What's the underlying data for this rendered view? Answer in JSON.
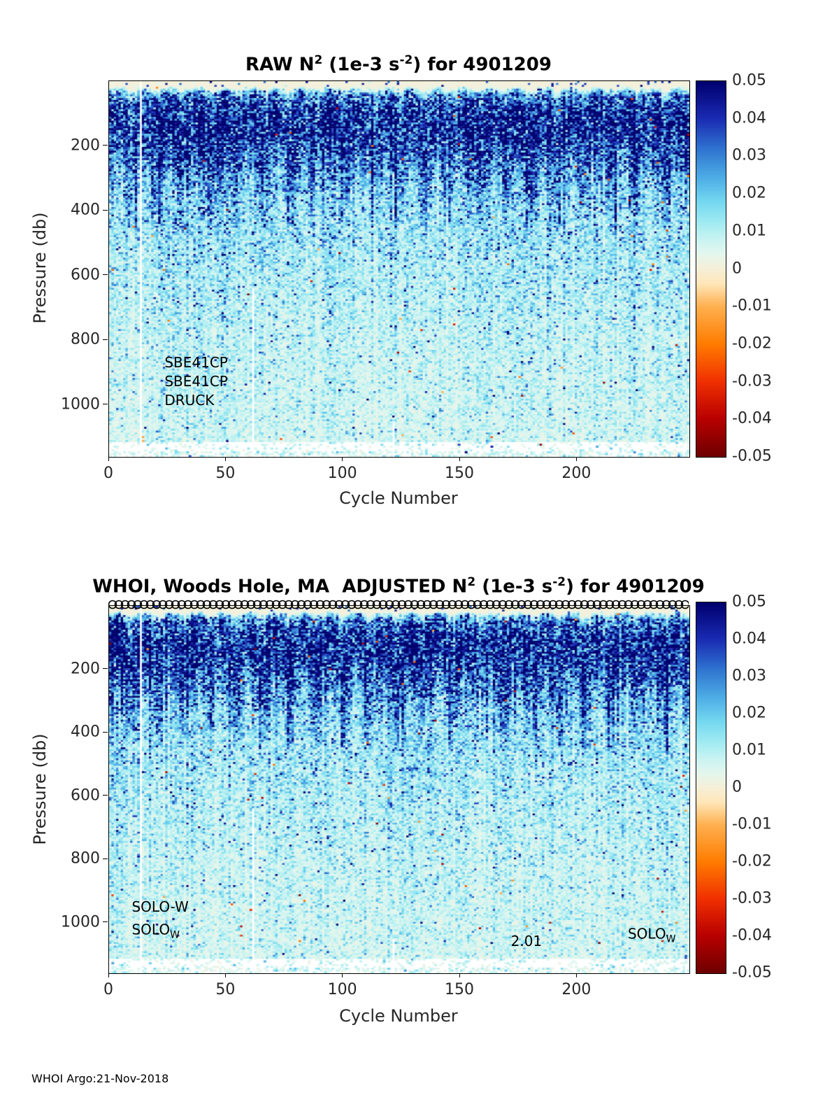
{
  "page": {
    "footer": "WHOI Argo:21-Nov-2018"
  },
  "chart_data": [
    {
      "type": "heatmap",
      "title_plain": "RAW N^2 (1e-3 s^-2) for 4901209",
      "title_parts": [
        {
          "t": "RAW N"
        },
        {
          "sup": "2"
        },
        {
          "t": " (1e-3 s"
        },
        {
          "sup": "-2"
        },
        {
          "t": ") for 4901209"
        }
      ],
      "xlabel": "Cycle Number",
      "ylabel": "Pressure (db)",
      "xlim": [
        0,
        248
      ],
      "ylim": [
        0,
        1160
      ],
      "y_axis_reversed": true,
      "x_ticks": [
        0,
        50,
        100,
        150,
        200
      ],
      "y_ticks": [
        200,
        400,
        600,
        800,
        1000
      ],
      "clim": [
        -0.05,
        0.05
      ],
      "colorbar_ticks": [
        0.05,
        0.04,
        0.03,
        0.02,
        0.01,
        0,
        -0.01,
        -0.02,
        -0.03,
        -0.04,
        -0.05
      ],
      "legend_position": "right-colorbar",
      "grid": false,
      "annotations": [
        {
          "text": "SBE41CP",
          "cycle": 24,
          "pressure": 873
        },
        {
          "text": "SBE41CP",
          "cycle": 24,
          "pressure": 932
        },
        {
          "text": "DRUCK",
          "cycle": 24,
          "pressure": 990
        }
      ],
      "profile": {
        "pressure": [
          0,
          20,
          45,
          120,
          230,
          350,
          550,
          800,
          1100,
          1160
        ],
        "n2_mean": [
          0.0006,
          0.0008,
          0.03,
          0.05,
          0.035,
          0.016,
          0.011,
          0.008,
          0.0065,
          0.006
        ]
      },
      "noise_sigma": 0.55,
      "missing_cycles": [
        {
          "cycle": 13,
          "from_pressure": 0
        },
        {
          "cycle": 61,
          "from_pressure": 640
        },
        {
          "cycle": 121,
          "from_pressure": 1050
        }
      ],
      "sparse_bottom_pressure": 1112,
      "top_markers": false,
      "seed": 20
    },
    {
      "type": "heatmap",
      "title_plain": "WHOI, Woods Hole, MA  ADJUSTED N^2 (1e-3 s^-2) for 4901209",
      "title_parts": [
        {
          "t": "WHOI, Woods Hole, MA  ADJUSTED N"
        },
        {
          "sup": "2"
        },
        {
          "t": " (1e-3 s"
        },
        {
          "sup": "-2"
        },
        {
          "t": ") for 4901209"
        }
      ],
      "xlabel": "Cycle Number",
      "ylabel": "Pressure (db)",
      "xlim": [
        0,
        248
      ],
      "ylim": [
        0,
        1160
      ],
      "y_axis_reversed": true,
      "x_ticks": [
        0,
        50,
        100,
        150,
        200
      ],
      "y_ticks": [
        200,
        400,
        600,
        800,
        1000
      ],
      "clim": [
        -0.05,
        0.05
      ],
      "colorbar_ticks": [
        0.05,
        0.04,
        0.03,
        0.02,
        0.01,
        0,
        -0.01,
        -0.02,
        -0.03,
        -0.04,
        -0.05
      ],
      "legend_position": "right-colorbar",
      "grid": false,
      "annotations": [
        {
          "text": "SOLO-W",
          "cycle": 10,
          "pressure": 955
        },
        {
          "text": "SOLO",
          "sub": "W",
          "cycle": 10,
          "pressure": 1032
        },
        {
          "text": "2.01",
          "cycle": 172,
          "pressure": 1062
        },
        {
          "text": "SOLO",
          "sub": "W",
          "cycle": 222,
          "pressure": 1045
        }
      ],
      "profile": {
        "pressure": [
          0,
          20,
          45,
          120,
          230,
          350,
          550,
          800,
          1100,
          1160
        ],
        "n2_mean": [
          0.0006,
          0.0008,
          0.03,
          0.05,
          0.035,
          0.016,
          0.011,
          0.008,
          0.0065,
          0.006
        ]
      },
      "noise_sigma": 0.55,
      "missing_cycles": [
        {
          "cycle": 13,
          "from_pressure": 0
        },
        {
          "cycle": 61,
          "from_pressure": 640
        },
        {
          "cycle": 121,
          "from_pressure": 1050
        }
      ],
      "sparse_bottom_pressure": 1112,
      "top_markers": true,
      "seed": 77
    }
  ],
  "colormap": [
    [
      -0.05,
      "#6e0000"
    ],
    [
      -0.04,
      "#b80000"
    ],
    [
      -0.03,
      "#f03000"
    ],
    [
      -0.02,
      "#ff7c00"
    ],
    [
      -0.01,
      "#ffb050"
    ],
    [
      -0.004,
      "#ffe6b8"
    ],
    [
      0.0,
      "#f6efd8"
    ],
    [
      0.004,
      "#e4f7ee"
    ],
    [
      0.008,
      "#c9f3f2"
    ],
    [
      0.012,
      "#a4ecf2"
    ],
    [
      0.018,
      "#74d8f0"
    ],
    [
      0.024,
      "#4fb0e6"
    ],
    [
      0.032,
      "#2f74d0"
    ],
    [
      0.04,
      "#1a2cb4"
    ],
    [
      0.05,
      "#00006e"
    ]
  ]
}
